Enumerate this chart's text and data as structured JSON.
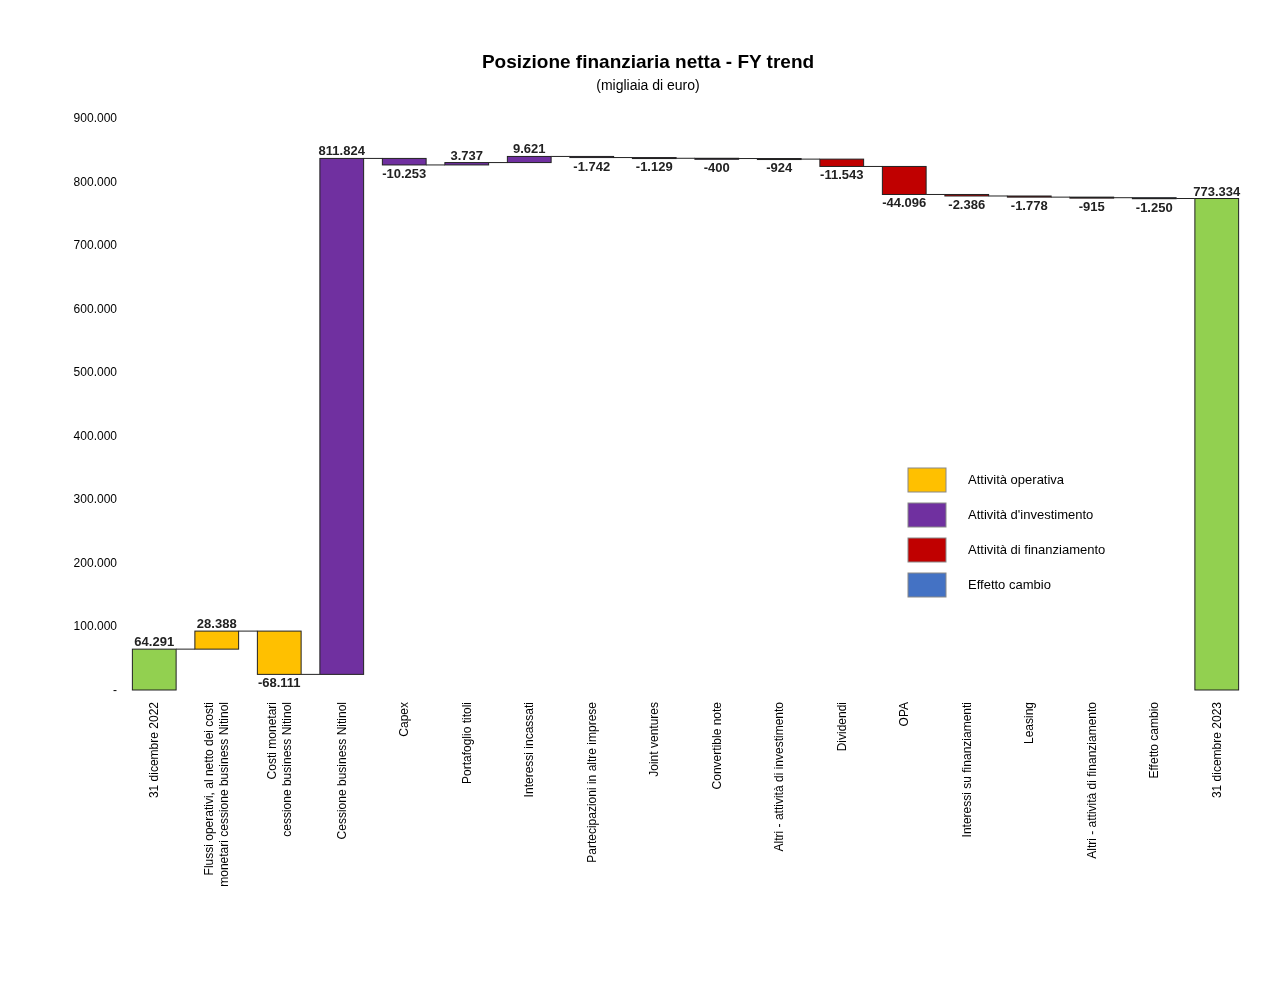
{
  "chart_data": {
    "type": "bar",
    "title": "Posizione finanziaria netta - FY trend",
    "subtitle": "(migliaia di euro)",
    "categories": [
      "31 dicembre 2022",
      "Flussi operativi, al netto dei costi\nmonetari cessione business Nitinol",
      "Costi monetari\ncessione business Nitinol",
      "Cessione business Nitinol",
      "Capex",
      "Portafoglio titoli",
      "Interessi incassati",
      "Partecipazioni in altre imprese",
      "Joint ventures",
      "Convertible note",
      "Altri - attività di investimento",
      "Dividendi",
      "OPA",
      "Interessi su finanziamenti",
      "Leasing",
      "Altri - attività di finanziamento",
      "Effetto cambio",
      "31 dicembre 2023"
    ],
    "series": [
      {
        "color": "#92d050",
        "values": [
          64291,
          null,
          null,
          null,
          null,
          null,
          null,
          null,
          null,
          null,
          null,
          null,
          null,
          null,
          null,
          null,
          null,
          773334
        ],
        "base": [
          0,
          null,
          null,
          null,
          null,
          null,
          null,
          null,
          null,
          null,
          null,
          null,
          null,
          null,
          null,
          null,
          null,
          0
        ],
        "value_labels": [
          "64.291",
          null,
          null,
          null,
          null,
          null,
          null,
          null,
          null,
          null,
          null,
          null,
          null,
          null,
          null,
          null,
          null,
          "773.334"
        ]
      },
      {
        "name": "Attività operativa",
        "color": "#ffc000",
        "values": [
          null,
          28388,
          -68111,
          null,
          null,
          null,
          null,
          null,
          null,
          null,
          null,
          null,
          null,
          null,
          null,
          null,
          null,
          null
        ],
        "base": [
          null,
          64291,
          92679,
          null,
          null,
          null,
          null,
          null,
          null,
          null,
          null,
          null,
          null,
          null,
          null,
          null,
          null,
          null
        ],
        "value_labels": [
          null,
          "28.388",
          "-68.111",
          null,
          null,
          null,
          null,
          null,
          null,
          null,
          null,
          null,
          null,
          null,
          null,
          null,
          null,
          null
        ]
      },
      {
        "name": "Attività d'investimento",
        "color": "#7030a0",
        "values": [
          null,
          null,
          null,
          811824,
          -10253,
          3737,
          9621,
          -1742,
          -1129,
          -400,
          -924,
          null,
          null,
          null,
          null,
          null,
          null,
          null
        ],
        "base": [
          null,
          null,
          null,
          24568,
          836392,
          826139,
          829876,
          839497,
          837755,
          836626,
          836226,
          null,
          null,
          null,
          null,
          null,
          null,
          null
        ],
        "value_labels": [
          null,
          null,
          null,
          "811.824",
          "-10.253",
          "3.737",
          "9.621",
          "-1.742",
          "-1.129",
          "-400",
          "-924",
          null,
          null,
          null,
          null,
          null,
          null,
          null
        ]
      },
      {
        "name": "Attività di finanziamento",
        "color": "#c00000",
        "values": [
          null,
          null,
          null,
          null,
          null,
          null,
          null,
          null,
          null,
          null,
          null,
          -11543,
          -44096,
          -2386,
          -1778,
          -915,
          null,
          null
        ],
        "base": [
          null,
          null,
          null,
          null,
          null,
          null,
          null,
          null,
          null,
          null,
          null,
          835302,
          823759,
          779663,
          777277,
          775499,
          null,
          null
        ],
        "value_labels": [
          null,
          null,
          null,
          null,
          null,
          null,
          null,
          null,
          null,
          null,
          null,
          "-11.543",
          "-44.096",
          "-2.386",
          "-1.778",
          "-915",
          null,
          null
        ]
      },
      {
        "name": "Effetto cambio",
        "color": "#4472c4",
        "values": [
          null,
          null,
          null,
          null,
          null,
          null,
          null,
          null,
          null,
          null,
          null,
          null,
          null,
          null,
          null,
          null,
          -1250,
          null
        ],
        "base": [
          null,
          null,
          null,
          null,
          null,
          null,
          null,
          null,
          null,
          null,
          null,
          null,
          null,
          null,
          null,
          null,
          774584,
          null
        ],
        "value_labels": [
          null,
          null,
          null,
          null,
          null,
          null,
          null,
          null,
          null,
          null,
          null,
          null,
          null,
          null,
          null,
          null,
          "-1.250",
          null
        ]
      }
    ],
    "ylim": [
      0,
      900000
    ],
    "yticks": [
      {
        "value": 0,
        "label": "-"
      },
      {
        "value": 100000,
        "label": "100.000"
      },
      {
        "value": 200000,
        "label": "200.000"
      },
      {
        "value": 300000,
        "label": "300.000"
      },
      {
        "value": 400000,
        "label": "400.000"
      },
      {
        "value": 500000,
        "label": "500.000"
      },
      {
        "value": 600000,
        "label": "600.000"
      },
      {
        "value": 700000,
        "label": "700.000"
      },
      {
        "value": 800000,
        "label": "800.000"
      },
      {
        "value": 900000,
        "label": "900.000"
      }
    ],
    "legend": "bottom right"
  }
}
